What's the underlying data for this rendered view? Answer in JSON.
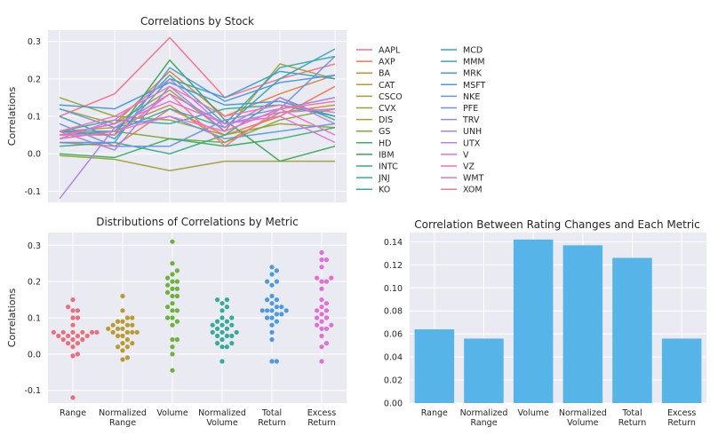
{
  "colors": {
    "panel_bg": "#EAEAF2",
    "grid": "#FFFFFF",
    "bar": "#56B4E9",
    "text": "#262626"
  },
  "chart_data": [
    {
      "type": "line",
      "title": "Correlations by Stock",
      "ylabel": "Correlations",
      "xlabel": "",
      "ylim": [
        -0.13,
        0.33
      ],
      "yticks": [
        -0.1,
        0.0,
        0.1,
        0.2,
        0.3
      ],
      "x": [
        "Range",
        "Normalized Range",
        "Volume",
        "Normalized Volume",
        "Total Return",
        "Excess Return"
      ],
      "show_xtick_labels": false,
      "grid": true,
      "legend_position": "right",
      "legend_columns": 2,
      "series": [
        {
          "name": "AAPL",
          "color": "#F77189",
          "values": [
            0.1,
            0.16,
            0.31,
            0.15,
            0.2,
            0.24
          ]
        },
        {
          "name": "AXP",
          "color": "#F7754F",
          "values": [
            0.03,
            0.02,
            0.12,
            0.05,
            0.1,
            0.18
          ]
        },
        {
          "name": "BA",
          "color": "#DD8431",
          "values": [
            0.05,
            0.08,
            0.22,
            0.1,
            0.16,
            0.21
          ]
        },
        {
          "name": "CAT",
          "color": "#C39532",
          "values": [
            0.06,
            0.07,
            0.13,
            0.03,
            0.11,
            0.13
          ]
        },
        {
          "name": "CSCO",
          "color": "#AE9D31",
          "values": [
            0.12,
            0.08,
            0.17,
            0.06,
            0.24,
            0.2
          ]
        },
        {
          "name": "CVX",
          "color": "#97A431",
          "values": [
            0.15,
            0.1,
            0.09,
            0.05,
            0.08,
            0.07
          ]
        },
        {
          "name": "DIS",
          "color": "#A3A031",
          "values": [
            -0.005,
            -0.015,
            -0.045,
            -0.02,
            -0.02,
            -0.02
          ]
        },
        {
          "name": "GS",
          "color": "#79AC31",
          "values": [
            0.04,
            0.06,
            0.04,
            0.03,
            0.09,
            0.12
          ]
        },
        {
          "name": "HD",
          "color": "#32B166",
          "values": [
            0.0,
            -0.01,
            0.04,
            0.02,
            0.04,
            0.07
          ]
        },
        {
          "name": "IBM",
          "color": "#39A851",
          "values": [
            0.06,
            0.05,
            0.25,
            0.09,
            -0.02,
            0.02
          ]
        },
        {
          "name": "INTC",
          "color": "#34AE8A",
          "values": [
            0.02,
            0.03,
            0.0,
            0.05,
            0.15,
            0.09
          ]
        },
        {
          "name": "JNJ",
          "color": "#36AD9C",
          "values": [
            0.06,
            0.09,
            0.08,
            0.12,
            0.13,
            0.1
          ]
        },
        {
          "name": "KO",
          "color": "#38AAAC",
          "values": [
            0.05,
            0.06,
            0.21,
            0.08,
            0.23,
            0.26
          ]
        },
        {
          "name": "MCD",
          "color": "#3AA5BA",
          "values": [
            0.06,
            0.06,
            0.12,
            0.07,
            0.2,
            0.28
          ]
        },
        {
          "name": "MMM",
          "color": "#3BA0C8",
          "values": [
            0.1,
            0.04,
            0.2,
            0.15,
            0.22,
            0.2
          ]
        },
        {
          "name": "MRK",
          "color": "#3D9CD5",
          "values": [
            0.13,
            0.12,
            0.19,
            0.13,
            0.14,
            0.1
          ]
        },
        {
          "name": "MSFT",
          "color": "#4D98E3",
          "values": [
            0.03,
            0.03,
            0.23,
            0.14,
            0.19,
            0.21
          ]
        },
        {
          "name": "NKE",
          "color": "#5D9AE8",
          "values": [
            0.12,
            0.07,
            0.1,
            0.04,
            0.06,
            0.08
          ]
        },
        {
          "name": "PFE",
          "color": "#708FE8",
          "values": [
            0.08,
            0.02,
            0.02,
            0.09,
            0.12,
            0.26
          ]
        },
        {
          "name": "TRV",
          "color": "#9B86E6",
          "values": [
            0.06,
            0.01,
            0.18,
            0.06,
            0.12,
            0.15
          ]
        },
        {
          "name": "UNH",
          "color": "#AE7FE5",
          "values": [
            -0.12,
            0.07,
            0.16,
            0.08,
            0.11,
            0.12
          ]
        },
        {
          "name": "UTX",
          "color": "#C47CE4",
          "values": [
            0.04,
            0.09,
            0.2,
            0.07,
            0.15,
            0.08
          ]
        },
        {
          "name": "V",
          "color": "#E26EDD",
          "values": [
            0.05,
            0.08,
            0.14,
            0.08,
            0.1,
            0.03
          ]
        },
        {
          "name": "VZ",
          "color": "#F36FC8",
          "values": [
            0.04,
            0.06,
            0.1,
            0.06,
            0.12,
            0.05
          ]
        },
        {
          "name": "WMT",
          "color": "#F571B2",
          "values": [
            0.06,
            0.1,
            0.18,
            0.1,
            0.13,
            0.11
          ]
        },
        {
          "name": "XOM",
          "color": "#F7739C",
          "values": [
            0.05,
            0.05,
            0.16,
            0.02,
            0.12,
            0.14
          ]
        }
      ]
    },
    {
      "type": "scatter",
      "title": "Distributions of Correlations by Metric",
      "ylabel": "Correlations",
      "xlabel": "",
      "ylim": [
        -0.135,
        0.335
      ],
      "yticks": [
        -0.1,
        0.0,
        0.1,
        0.2,
        0.3
      ],
      "categories": [
        "Range",
        "Normalized\nRange",
        "Volume",
        "Normalized\nVolume",
        "Total\nReturn",
        "Excess\nReturn"
      ],
      "category_colors": [
        "#E8707C",
        "#B89B33",
        "#6DB23A",
        "#37AA9B",
        "#4C9BE0",
        "#E070D8"
      ],
      "grid": true
    },
    {
      "type": "bar",
      "title": "Correlation Between Rating Changes and Each Metric",
      "xlabel": "",
      "ylabel": "",
      "categories": [
        "Range",
        "Normalized\nRange",
        "Volume",
        "Normalized\nVolume",
        "Total\nReturn",
        "Excess\nReturn"
      ],
      "values": [
        0.064,
        0.056,
        0.142,
        0.137,
        0.126,
        0.056
      ],
      "ylim": [
        0.0,
        0.148
      ],
      "yticks": [
        0.0,
        0.02,
        0.04,
        0.06,
        0.08,
        0.1,
        0.12,
        0.14
      ],
      "ytick_labels": [
        "0.00",
        "0.02",
        "0.04",
        "0.06",
        "0.08",
        "0.10",
        "0.12",
        "0.14"
      ],
      "grid": true
    }
  ]
}
